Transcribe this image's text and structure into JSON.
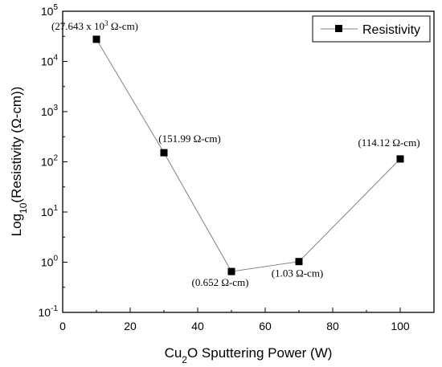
{
  "chart_data": {
    "type": "line",
    "title": "",
    "xlabel": {
      "main": "Cu",
      "sub": "2",
      "rest": "O Sputtering Power (W)"
    },
    "ylabel": {
      "main": "Log",
      "sub": "10",
      "rest": "(Resistivity (Ω-cm))"
    },
    "xlim": [
      0,
      110
    ],
    "ylim_exponent": [
      -1,
      5
    ],
    "y_scale": "log",
    "x_ticks": [
      "0",
      "20",
      "40",
      "60",
      "80",
      "100"
    ],
    "x_tick_values": [
      0,
      20,
      40,
      60,
      80,
      100
    ],
    "y_ticks": [
      {
        "base": "10",
        "exp": "-1",
        "value": -1
      },
      {
        "base": "10",
        "exp": "0",
        "value": 0
      },
      {
        "base": "10",
        "exp": "1",
        "value": 1
      },
      {
        "base": "10",
        "exp": "2",
        "value": 2
      },
      {
        "base": "10",
        "exp": "3",
        "value": 3
      },
      {
        "base": "10",
        "exp": "4",
        "value": 4
      },
      {
        "base": "10",
        "exp": "5",
        "value": 5
      }
    ],
    "grid": false,
    "legend_position": "top-right",
    "series": [
      {
        "name": "Resistivity",
        "color": "#000000",
        "line_color": "#808080",
        "marker": "square",
        "x": [
          10,
          30,
          50,
          70,
          100
        ],
        "y": [
          27643,
          151.99,
          0.652,
          1.03,
          114.12
        ]
      }
    ],
    "annotations": [
      {
        "pre": "(27.643 x 10",
        "sup": "3",
        "post": " Ω-cm)"
      },
      {
        "pre": "(151.99 Ω-cm)",
        "sup": "",
        "post": ""
      },
      {
        "pre": "(0.652 Ω-cm)",
        "sup": "",
        "post": ""
      },
      {
        "pre": "(1.03 Ω-cm)",
        "sup": "",
        "post": ""
      },
      {
        "pre": "(114.12 Ω-cm)",
        "sup": "",
        "post": ""
      }
    ]
  }
}
